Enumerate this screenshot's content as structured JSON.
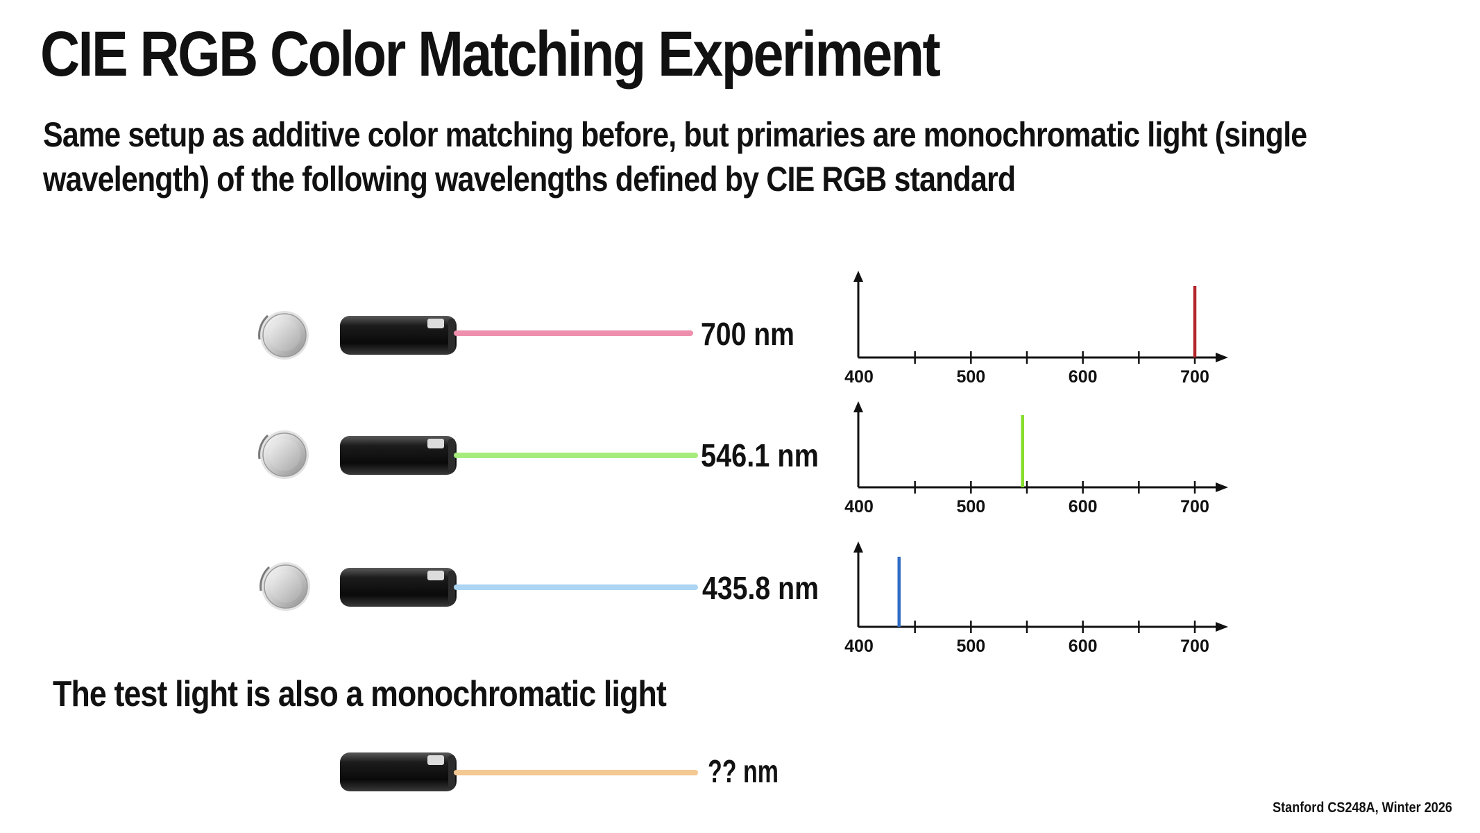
{
  "slide": {
    "title": "CIE RGB Color Matching Experiment",
    "subtitle_line1": "Same setup as additive color matching before, but primaries are monochromatic light (single",
    "subtitle_line2": "wavelength) of the following wavelengths defined by CIE RGB standard",
    "test_caption": "The test light is also a monochromatic light",
    "footer": "Stanford CS248A, Winter 2026"
  },
  "primaries": [
    {
      "label": "700 nm",
      "beam_color": "#ee8fae",
      "spike_color": "#b3262b"
    },
    {
      "label": "546.1 nm",
      "beam_color": "#a6ec7c",
      "spike_color": "#86dd2c"
    },
    {
      "label": "435.8 nm",
      "beam_color": "#abd5f3",
      "spike_color": "#2f6cc4"
    }
  ],
  "test_light": {
    "label": "?? nm",
    "beam_color": "#f4c892"
  },
  "chart_data": [
    {
      "type": "bar",
      "title": "",
      "xlabel": "",
      "ylabel": "",
      "xlim": [
        400,
        730
      ],
      "xticks": [
        "400",
        "500",
        "600",
        "700"
      ],
      "x": [
        700
      ],
      "values": [
        1
      ]
    },
    {
      "type": "bar",
      "title": "",
      "xlabel": "",
      "ylabel": "",
      "xlim": [
        400,
        730
      ],
      "xticks": [
        "400",
        "500",
        "600",
        "700"
      ],
      "x": [
        546.1
      ],
      "values": [
        1
      ]
    },
    {
      "type": "bar",
      "title": "",
      "xlabel": "",
      "ylabel": "",
      "xlim": [
        400,
        730
      ],
      "xticks": [
        "400",
        "500",
        "600",
        "700"
      ],
      "x": [
        435.8
      ],
      "values": [
        1
      ]
    }
  ]
}
